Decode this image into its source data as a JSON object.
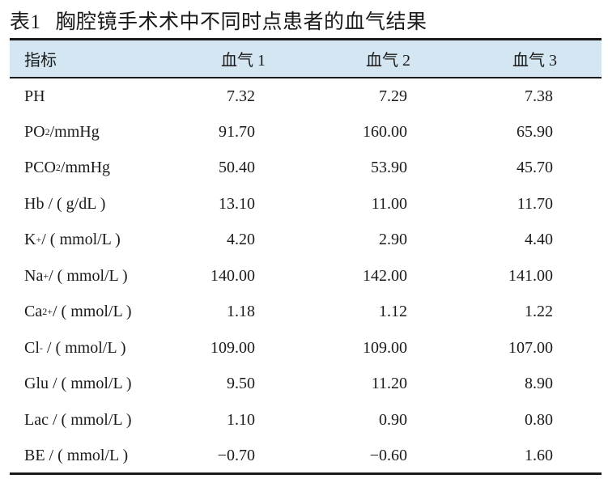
{
  "caption": {
    "label": "表1",
    "title": "胸腔镜手术术中不同时点患者的血气结果"
  },
  "header": [
    "指标",
    "血气 1",
    "血气 2",
    "血气 3"
  ],
  "rows": [
    {
      "name": [
        "PH"
      ],
      "values": [
        "7.32",
        "7.29",
        "7.38"
      ]
    },
    {
      "name": [
        "PO",
        "2",
        "/mmHg"
      ],
      "values": [
        "91.70",
        "160.00",
        "65.90"
      ]
    },
    {
      "name": [
        "PCO",
        "2",
        "/mmHg"
      ],
      "values": [
        "50.40",
        "53.90",
        "45.70"
      ]
    },
    {
      "name": [
        "Hb / ( g/dL )"
      ],
      "values": [
        "13.10",
        "11.00",
        "11.70"
      ]
    },
    {
      "name": [
        "K",
        "+",
        "/ ( mmol/L )"
      ],
      "values": [
        "4.20",
        "2.90",
        "4.40"
      ]
    },
    {
      "name": [
        "Na",
        "+",
        "/ ( mmol/L )"
      ],
      "values": [
        "140.00",
        "142.00",
        "141.00"
      ]
    },
    {
      "name": [
        "Ca",
        "2+",
        "/ ( mmol/L )"
      ],
      "values": [
        "1.18",
        "1.12",
        "1.22"
      ]
    },
    {
      "name": [
        "Cl",
        "-",
        " / ( mmol/L )"
      ],
      "values": [
        "109.00",
        "109.00",
        "107.00"
      ]
    },
    {
      "name": [
        "Glu / ( mmol/L )"
      ],
      "values": [
        "9.50",
        "11.20",
        "8.90"
      ]
    },
    {
      "name": [
        "Lac / ( mmol/L )"
      ],
      "values": [
        "1.10",
        "0.90",
        "0.80"
      ]
    },
    {
      "name": [
        "BE / ( mmol/L )"
      ],
      "values": [
        "−0.70",
        "−0.60",
        "1.60"
      ]
    }
  ]
}
